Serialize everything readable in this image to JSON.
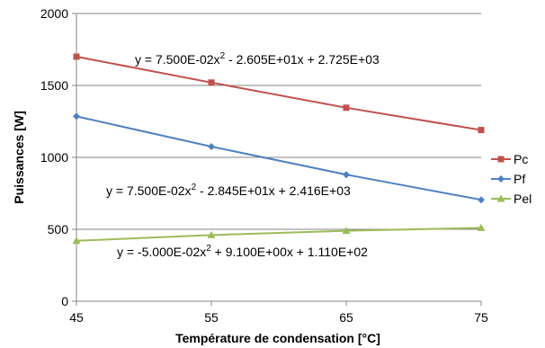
{
  "chart_data": {
    "type": "line",
    "xlabel": "Température de condensation [°C]",
    "ylabel": "Puissances [W]",
    "x": [
      45,
      55,
      65,
      75
    ],
    "xlim": [
      45,
      75
    ],
    "ylim": [
      0,
      2000
    ],
    "xticks": [
      "45",
      "55",
      "65",
      "75"
    ],
    "yticks": [
      "0",
      "500",
      "1000",
      "1500",
      "2000"
    ],
    "grid": "horizontal",
    "legend_position": "right",
    "series": [
      {
        "name": "Pc",
        "color": "#c0504d",
        "marker": "square",
        "values": [
          1700,
          1520,
          1345,
          1190
        ]
      },
      {
        "name": "Pf",
        "color": "#4f81bd",
        "marker": "diamond",
        "values": [
          1285,
          1075,
          880,
          705
        ]
      },
      {
        "name": "Pel",
        "color": "#9bbb59",
        "marker": "triangle",
        "values": [
          420,
          460,
          490,
          510
        ]
      }
    ],
    "equations": [
      {
        "pre": "y = 7.500E-02x",
        "sup": "2",
        "post": " - 2.605E+01x + 2.725E+03"
      },
      {
        "pre": "y = 7.500E-02x",
        "sup": "2",
        "post": " - 2.845E+01x + 2.416E+03"
      },
      {
        "pre": "y = -5.000E-02x",
        "sup": "2",
        "post": " + 9.100E+00x + 1.110E+02"
      }
    ]
  }
}
